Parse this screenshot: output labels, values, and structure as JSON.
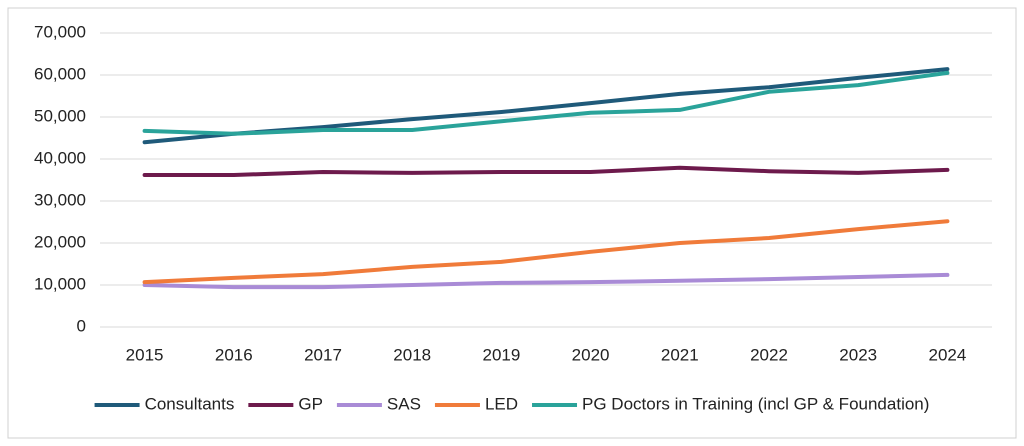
{
  "chart_data": {
    "type": "line",
    "categories": [
      "2015",
      "2016",
      "2017",
      "2018",
      "2019",
      "2020",
      "2021",
      "2022",
      "2023",
      "2024"
    ],
    "series": [
      {
        "name": "Consultants",
        "color": "#1f5a7a",
        "values": [
          44000,
          46000,
          47600,
          49500,
          51200,
          53300,
          55500,
          57100,
          59300,
          61400
        ]
      },
      {
        "name": "GP",
        "color": "#6d1a4c",
        "values": [
          36200,
          36200,
          36900,
          36700,
          36900,
          36900,
          37900,
          37100,
          36700,
          37400
        ]
      },
      {
        "name": "SAS",
        "color": "#a98bd6",
        "values": [
          10000,
          9500,
          9500,
          10000,
          10500,
          10700,
          11000,
          11400,
          11900,
          12400
        ]
      },
      {
        "name": "LED",
        "color": "#f07b3a",
        "values": [
          10700,
          11700,
          12600,
          14300,
          15500,
          17900,
          20000,
          21200,
          23300,
          25200
        ]
      },
      {
        "name": "PG Doctors in Training (incl GP & Foundation)",
        "color": "#2aa39a",
        "values": [
          46700,
          46000,
          46900,
          46900,
          49000,
          51000,
          51700,
          56000,
          57600,
          60500
        ]
      }
    ],
    "ylim": [
      0,
      70000
    ],
    "yticks": [
      0,
      {
        "value": 10000,
        "label": "10,000"
      },
      {
        "value": 20000,
        "label": "20,000"
      },
      {
        "value": 30000,
        "label": "30,000"
      },
      {
        "value": 40000,
        "label": "40,000"
      },
      {
        "value": 50000,
        "label": "50,000"
      },
      {
        "value": 60000,
        "label": "60,000"
      },
      {
        "value": 70000,
        "label": "70,000"
      }
    ],
    "grid": true,
    "legend": "bottom"
  }
}
